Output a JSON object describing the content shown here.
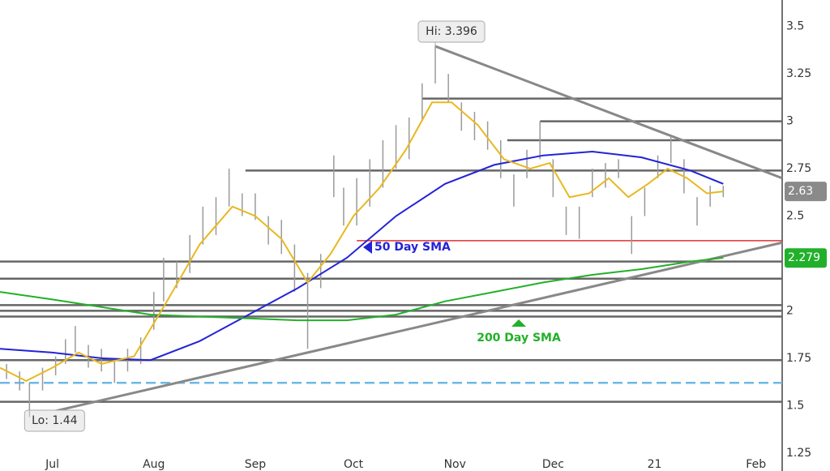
{
  "chart_data": {
    "type": "ohlc",
    "xlim": [
      -16,
      223
    ],
    "xticks": [
      {
        "value": 0,
        "label": "Jul"
      },
      {
        "value": 31,
        "label": "Aug"
      },
      {
        "value": 62,
        "label": "Sep"
      },
      {
        "value": 92,
        "label": "Oct"
      },
      {
        "value": 123,
        "label": "Nov"
      },
      {
        "value": 153,
        "label": "Dec"
      },
      {
        "value": 184,
        "label": "21"
      },
      {
        "value": 215,
        "label": "Feb"
      }
    ],
    "ylim": [
      1.155,
      3.64
    ],
    "yticks": [
      1.25,
      1.5,
      1.75,
      2,
      2.25,
      2.5,
      2.75,
      3,
      3.25,
      3.5
    ],
    "bars": {
      "color": "#9a9a9a",
      "x": [
        -14,
        -10,
        -7,
        -3,
        1,
        4,
        7,
        11,
        15,
        19,
        23,
        27,
        31,
        34,
        38,
        42,
        46,
        50,
        54,
        58,
        62,
        66,
        70,
        74,
        78,
        82,
        86,
        89,
        93,
        97,
        101,
        105,
        109,
        113,
        117,
        121,
        125,
        129,
        133,
        137,
        141,
        145,
        149,
        153,
        157,
        161,
        165,
        169,
        173,
        177,
        181,
        185,
        189,
        193,
        197,
        201,
        205
      ],
      "low": [
        1.64,
        1.58,
        1.44,
        1.58,
        1.66,
        1.72,
        1.78,
        1.7,
        1.68,
        1.62,
        1.68,
        1.72,
        1.9,
        2.05,
        2.12,
        2.2,
        2.35,
        2.4,
        2.55,
        2.5,
        2.48,
        2.35,
        2.3,
        2.1,
        1.8,
        2.12,
        2.6,
        2.45,
        2.45,
        2.55,
        2.65,
        2.75,
        2.8,
        3.0,
        3.2,
        3.1,
        2.95,
        2.9,
        2.85,
        2.7,
        2.55,
        2.7,
        2.8,
        2.6,
        2.4,
        2.38,
        2.6,
        2.65,
        2.7,
        2.3,
        2.5,
        2.7,
        2.78,
        2.62,
        2.45,
        2.55,
        2.6
      ],
      "high": [
        1.72,
        1.68,
        1.62,
        1.7,
        1.76,
        1.85,
        1.92,
        1.82,
        1.8,
        1.74,
        1.8,
        1.86,
        2.1,
        2.28,
        2.26,
        2.4,
        2.55,
        2.6,
        2.75,
        2.62,
        2.62,
        2.5,
        2.48,
        2.35,
        2.2,
        2.3,
        2.82,
        2.65,
        2.7,
        2.8,
        2.9,
        2.98,
        3.02,
        3.2,
        3.396,
        3.25,
        3.1,
        3.05,
        3.0,
        2.9,
        2.72,
        2.85,
        3.0,
        2.8,
        2.55,
        2.55,
        2.75,
        2.78,
        2.8,
        2.5,
        2.65,
        2.82,
        2.92,
        2.8,
        2.6,
        2.66,
        2.66
      ]
    },
    "series": [
      {
        "name": "50 Day SMA",
        "color": "#2323d6",
        "x": [
          -16,
          0,
          15,
          30,
          45,
          60,
          75,
          90,
          105,
          120,
          135,
          150,
          165,
          180,
          195,
          205
        ],
        "values": [
          1.8,
          1.78,
          1.75,
          1.74,
          1.84,
          1.98,
          2.12,
          2.28,
          2.5,
          2.67,
          2.77,
          2.82,
          2.84,
          2.81,
          2.74,
          2.67
        ]
      },
      {
        "name": "200 Day SMA",
        "color": "#22b02a",
        "x": [
          -16,
          0,
          15,
          30,
          45,
          60,
          75,
          90,
          105,
          120,
          135,
          150,
          165,
          180,
          195,
          205
        ],
        "values": [
          2.1,
          2.06,
          2.02,
          1.98,
          1.97,
          1.96,
          1.95,
          1.95,
          1.98,
          2.05,
          2.1,
          2.15,
          2.19,
          2.22,
          2.26,
          2.28
        ]
      },
      {
        "color": "#e8b820",
        "x": [
          -16,
          -8,
          0,
          8,
          15,
          25,
          35,
          45,
          55,
          62,
          70,
          78,
          85,
          92,
          100,
          108,
          116,
          122,
          130,
          138,
          146,
          152,
          158,
          164,
          170,
          176,
          182,
          188,
          194,
          200,
          205
        ],
        "values": [
          1.7,
          1.63,
          1.7,
          1.78,
          1.72,
          1.76,
          2.05,
          2.35,
          2.55,
          2.5,
          2.38,
          2.15,
          2.3,
          2.5,
          2.65,
          2.85,
          3.1,
          3.1,
          2.98,
          2.8,
          2.75,
          2.78,
          2.6,
          2.62,
          2.7,
          2.6,
          2.67,
          2.75,
          2.7,
          2.62,
          2.63
        ]
      }
    ],
    "levels": [
      {
        "value": 3.12,
        "start": 113,
        "color": "#666"
      },
      {
        "value": 3.0,
        "start": 149,
        "color": "#666"
      },
      {
        "value": 2.9,
        "start": 139,
        "color": "#666"
      },
      {
        "value": 2.74,
        "start": 59,
        "color": "#666"
      },
      {
        "value": 2.37,
        "start": 93,
        "color": "#e03030"
      },
      {
        "value": 2.26,
        "start": -16,
        "color": "#666"
      },
      {
        "value": 2.17,
        "start": -16,
        "color": "#666"
      },
      {
        "value": 2.03,
        "start": -16,
        "color": "#666"
      },
      {
        "value": 2.0,
        "start": -16,
        "color": "#666"
      },
      {
        "value": 1.97,
        "start": -16,
        "color": "#666"
      },
      {
        "value": 1.74,
        "start": -16,
        "color": "#666"
      },
      {
        "value": 1.62,
        "start": -16,
        "color": "#6cb8e6",
        "dash": true
      },
      {
        "value": 1.52,
        "start": -16,
        "color": "#666"
      }
    ],
    "trendlines": [
      {
        "x": [
          117,
          223
        ],
        "values": [
          3.396,
          2.7
        ]
      },
      {
        "x": [
          -7,
          223
        ],
        "values": [
          1.44,
          2.36
        ]
      }
    ],
    "annotations": [
      "Hi: 3.396",
      "Lo: 1.44"
    ],
    "price_labels": [
      {
        "value": 2.63,
        "label": "2.63",
        "color": "#8a8a8a"
      },
      {
        "value": 2.279,
        "label": "2.279",
        "color": "#22b02a"
      }
    ]
  }
}
